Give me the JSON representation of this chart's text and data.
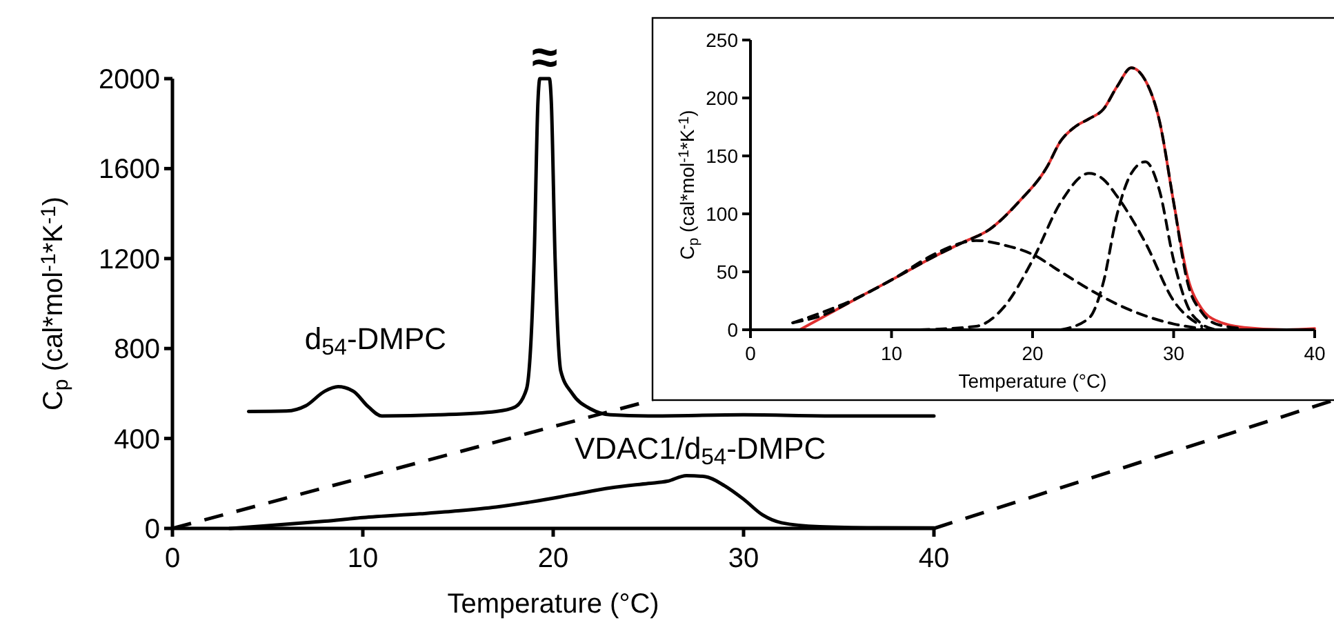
{
  "chart_data": [
    {
      "type": "line",
      "xlabel": "Temperature (°C)",
      "ylabel": "C$_{p}$ (cal*mol$^{-1}$*K$^{-1}$)",
      "xlim": [
        0,
        40
      ],
      "ylim": [
        0,
        2000
      ],
      "xticks": [
        0,
        10,
        20,
        30,
        40
      ],
      "yticks": [
        0,
        400,
        800,
        1200,
        1600,
        2000
      ],
      "grid": false,
      "marker": "none",
      "annotations": [
        {
          "text": "≈",
          "x": 19.55,
          "y": 2000
        }
      ],
      "series": [
        {
          "name": "d$_{54}$-DMPC",
          "color": "#000000",
          "line_style": "solid",
          "x": [
            4,
            6,
            7,
            8,
            8.7,
            9.5,
            10.3,
            11,
            14,
            17,
            18,
            18.6,
            19,
            19.2,
            19.3,
            19.8,
            19.9,
            20.1,
            20.4,
            21,
            22,
            23,
            25,
            30,
            35,
            40
          ],
          "values": [
            520,
            522,
            545,
            610,
            630,
            610,
            540,
            500,
            505,
            520,
            540,
            620,
            1200,
            1900,
            2000,
            2000,
            1900,
            1200,
            700,
            600,
            530,
            505,
            500,
            505,
            500,
            500
          ]
        },
        {
          "name": "VDAC1/d$_{54}$-DMPC",
          "color": "#000000",
          "line_style": "solid",
          "x": [
            3,
            5,
            8,
            10,
            13,
            15,
            17,
            19,
            21,
            23,
            25,
            26,
            27,
            28,
            29,
            30,
            31,
            32,
            34,
            37,
            40
          ],
          "values": [
            0,
            12,
            32,
            48,
            65,
            78,
            95,
            120,
            150,
            180,
            200,
            210,
            235,
            230,
            190,
            130,
            60,
            25,
            8,
            3,
            2
          ]
        }
      ]
    },
    {
      "type": "line",
      "xlabel": "Temperature (°C)",
      "ylabel": "C$_{p}$ (cal*mol$^{-1}$*K$^{-1}$)",
      "xlim": [
        0,
        40
      ],
      "ylim": [
        0,
        250
      ],
      "xticks": [
        0,
        10,
        20,
        30,
        40
      ],
      "yticks": [
        0,
        50,
        100,
        150,
        200,
        250
      ],
      "grid": false,
      "marker": "none",
      "series": [
        {
          "color": "#e03030",
          "line_style": "solid",
          "x": [
            3.5,
            5,
            8,
            10,
            13,
            15,
            17,
            19,
            21,
            22,
            23,
            24,
            25,
            26,
            27,
            28,
            29,
            30,
            31,
            32,
            33,
            35,
            38,
            40
          ],
          "values": [
            0,
            10,
            30,
            43,
            63,
            75,
            87,
            110,
            140,
            163,
            175,
            182,
            190,
            210,
            226,
            215,
            180,
            110,
            45,
            18,
            8,
            2,
            0,
            1
          ]
        },
        {
          "color": "#000000",
          "line_style": "dashed",
          "x": [
            3,
            5,
            8,
            10,
            13,
            15,
            17,
            19,
            21,
            22,
            23,
            24,
            25,
            26,
            27,
            28,
            29,
            30,
            31,
            32,
            33,
            35
          ],
          "values": [
            6,
            12,
            30,
            43,
            63,
            75,
            87,
            110,
            140,
            163,
            175,
            182,
            190,
            210,
            226,
            215,
            180,
            110,
            40,
            15,
            5,
            1
          ]
        },
        {
          "color": "#000000",
          "line_style": "dashed",
          "x": [
            3,
            8,
            10,
            13,
            15,
            16,
            18,
            20,
            22,
            24,
            26,
            28,
            30,
            32
          ],
          "values": [
            6,
            30,
            43,
            65,
            75,
            77,
            73,
            65,
            50,
            35,
            22,
            12,
            5,
            1
          ]
        },
        {
          "color": "#000000",
          "line_style": "dashed",
          "x": [
            12,
            16,
            18,
            20,
            22,
            24,
            25,
            26,
            28,
            30,
            32
          ],
          "values": [
            0,
            3,
            20,
            60,
            110,
            135,
            130,
            115,
            75,
            25,
            3
          ]
        },
        {
          "color": "#000000",
          "line_style": "dashed",
          "x": [
            22,
            24,
            25,
            26,
            27,
            28,
            29,
            30,
            31,
            32,
            33
          ],
          "values": [
            0,
            10,
            40,
            100,
            135,
            145,
            120,
            60,
            20,
            5,
            0
          ]
        }
      ]
    }
  ]
}
